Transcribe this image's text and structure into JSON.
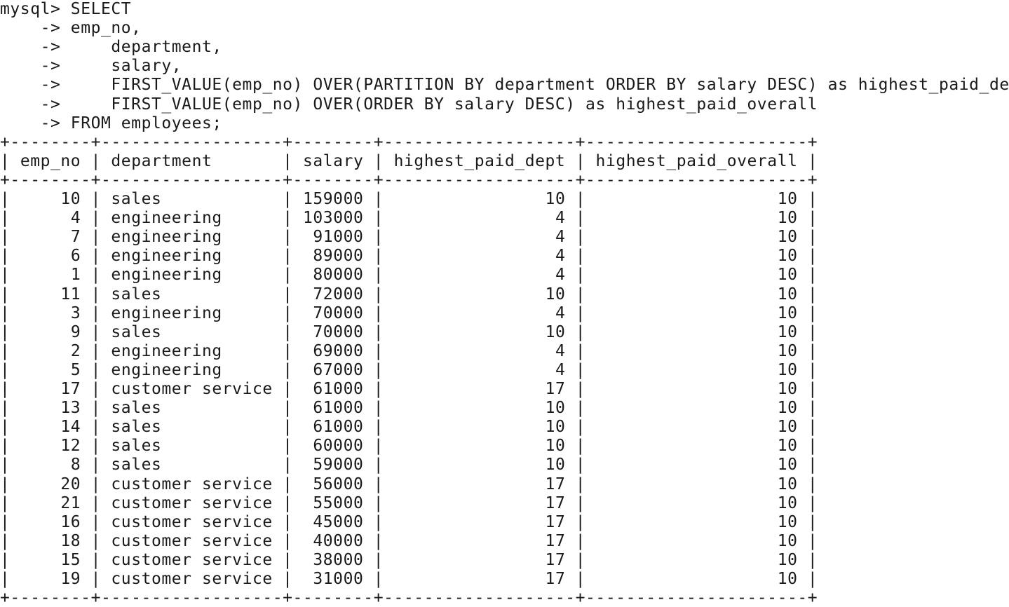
{
  "prompt": "mysql>",
  "continuation": "->",
  "query_lines": [
    "SELECT",
    "emp_no,",
    "    department,",
    "    salary,",
    "    FIRST_VALUE(emp_no) OVER(PARTITION BY department ORDER BY salary DESC) as highest_paid_dept,",
    "    FIRST_VALUE(emp_no) OVER(ORDER BY salary DESC) as highest_paid_overall",
    "FROM employees;"
  ],
  "result_table": {
    "columns": [
      "emp_no",
      "department",
      "salary",
      "highest_paid_dept",
      "highest_paid_overall"
    ],
    "rows": [
      [
        "10",
        "sales",
        "159000",
        "10",
        "10"
      ],
      [
        "4",
        "engineering",
        "103000",
        "4",
        "10"
      ],
      [
        "7",
        "engineering",
        "91000",
        "4",
        "10"
      ],
      [
        "6",
        "engineering",
        "89000",
        "4",
        "10"
      ],
      [
        "1",
        "engineering",
        "80000",
        "4",
        "10"
      ],
      [
        "11",
        "sales",
        "72000",
        "10",
        "10"
      ],
      [
        "3",
        "engineering",
        "70000",
        "4",
        "10"
      ],
      [
        "9",
        "sales",
        "70000",
        "10",
        "10"
      ],
      [
        "2",
        "engineering",
        "69000",
        "4",
        "10"
      ],
      [
        "5",
        "engineering",
        "67000",
        "4",
        "10"
      ],
      [
        "17",
        "customer service",
        "61000",
        "17",
        "10"
      ],
      [
        "13",
        "sales",
        "61000",
        "10",
        "10"
      ],
      [
        "14",
        "sales",
        "61000",
        "10",
        "10"
      ],
      [
        "12",
        "sales",
        "60000",
        "10",
        "10"
      ],
      [
        "8",
        "sales",
        "59000",
        "10",
        "10"
      ],
      [
        "20",
        "customer service",
        "56000",
        "17",
        "10"
      ],
      [
        "21",
        "customer service",
        "55000",
        "17",
        "10"
      ],
      [
        "16",
        "customer service",
        "45000",
        "17",
        "10"
      ],
      [
        "18",
        "customer service",
        "40000",
        "17",
        "10"
      ],
      [
        "15",
        "customer service",
        "38000",
        "17",
        "10"
      ],
      [
        "19",
        "customer service",
        "31000",
        "17",
        "10"
      ]
    ]
  }
}
